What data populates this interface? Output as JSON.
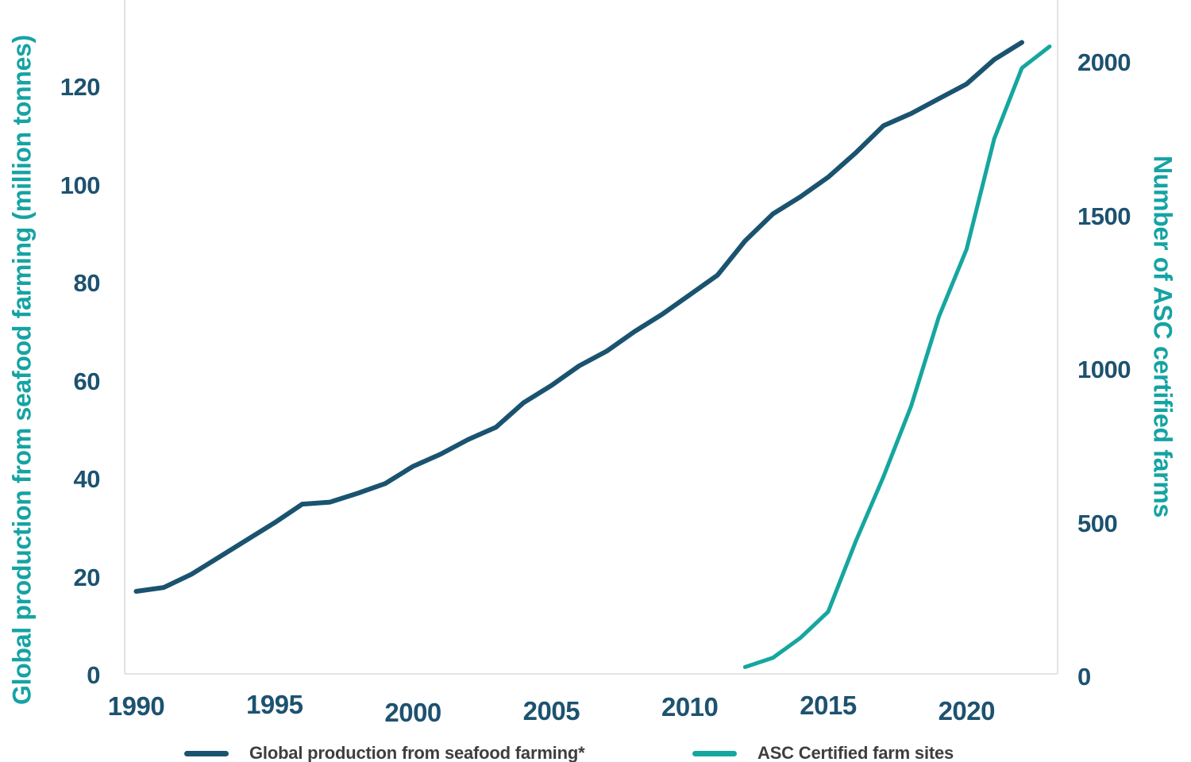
{
  "chart_data": {
    "type": "line",
    "title": "",
    "grid": false,
    "legend_position": "bottom",
    "x_axis": {
      "ticks": [
        1990,
        1995,
        2000,
        2005,
        2010,
        2015,
        2020
      ],
      "range": [
        1990,
        2023.5
      ]
    },
    "left_axis": {
      "label": "Global production from seafood farming (million tonnes)",
      "ticks": [
        0,
        20,
        40,
        60,
        80,
        100,
        120
      ],
      "range": [
        0,
        137
      ],
      "title_color": "#15a3a3",
      "tick_color": "#1d5270"
    },
    "right_axis": {
      "label": "Number of ASC certified farms",
      "ticks": [
        0,
        500,
        1000,
        1500,
        2000
      ],
      "range": [
        0,
        2200
      ],
      "title_color": "#15a3a3",
      "tick_color": "#1d5270"
    },
    "series": [
      {
        "name": "Global production from seafood farming*",
        "axis": "left",
        "color": "#1a5370",
        "x": [
          1990,
          1991,
          1992,
          1993,
          1994,
          1995,
          1996,
          1997,
          1998,
          1999,
          2000,
          2001,
          2002,
          2003,
          2004,
          2005,
          2006,
          2007,
          2008,
          2009,
          2010,
          2011,
          2012,
          2013,
          2014,
          2015,
          2016,
          2017,
          2018,
          2019,
          2020,
          2021,
          2022
        ],
        "values": [
          17,
          17.8,
          20.5,
          24,
          27.5,
          31,
          34.8,
          35.2,
          37,
          39,
          42.5,
          45,
          48,
          50.5,
          55.5,
          59,
          63,
          66,
          70,
          73.5,
          77.5,
          81.5,
          88.5,
          94,
          97.5,
          101.5,
          106.5,
          112,
          114.5,
          117.5,
          120.5,
          125.5,
          129
        ]
      },
      {
        "name": "ASC Certified farm sites",
        "axis": "right",
        "color": "#15a69f",
        "x": [
          2012,
          2013,
          2014,
          2015,
          2016,
          2017,
          2018,
          2019,
          2020,
          2021,
          2022,
          2023
        ],
        "values": [
          30,
          60,
          125,
          210,
          440,
          650,
          880,
          1170,
          1390,
          1750,
          1980,
          2050
        ]
      }
    ]
  }
}
